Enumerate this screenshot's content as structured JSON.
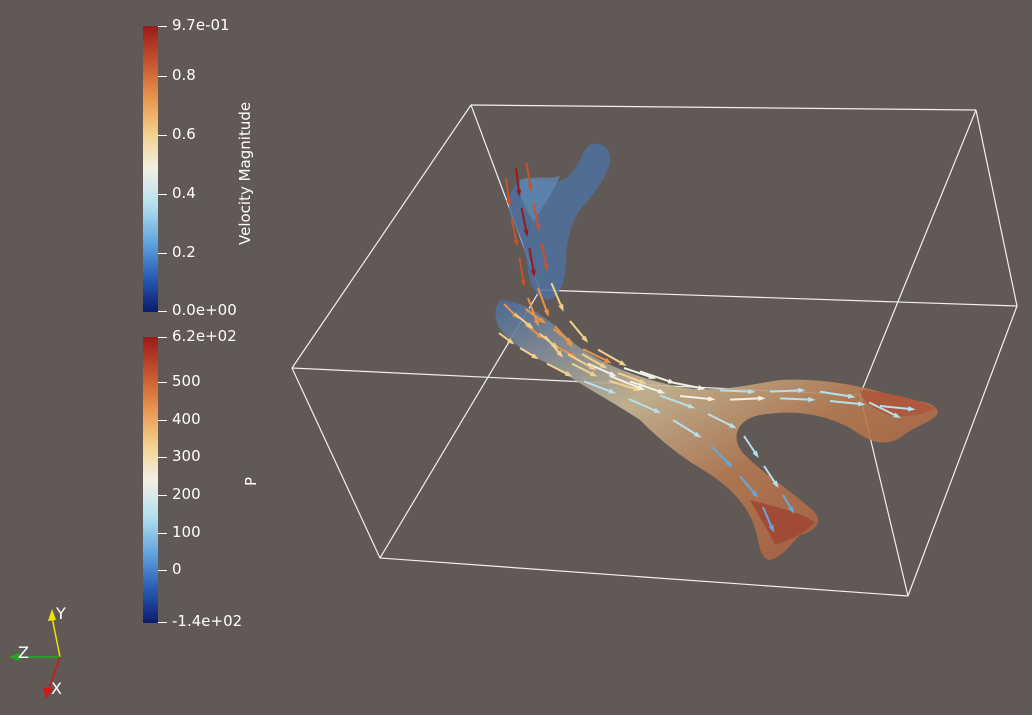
{
  "colors": {
    "background": "#605955",
    "colormap": [
      "#0c1b6e",
      "#2a5fb5",
      "#64a8e0",
      "#b5e0ee",
      "#f2f0e4",
      "#f3d08c",
      "#e8944c",
      "#c5532f",
      "#9a1a1a"
    ]
  },
  "velocity_bar": {
    "title": "Velocity Magnitude",
    "range": [
      0.0,
      0.97
    ],
    "max_label": "9.7e-01",
    "min_label": "0.0e+00",
    "ticks": [
      {
        "value": 0.8,
        "label": "0.8"
      },
      {
        "value": 0.6,
        "label": "0.6"
      },
      {
        "value": 0.4,
        "label": "0.4"
      },
      {
        "value": 0.2,
        "label": "0.2"
      }
    ]
  },
  "pressure_bar": {
    "title": "P",
    "range": [
      -140,
      620
    ],
    "max_label": "6.2e+02",
    "min_label": "-1.4e+02",
    "ticks": [
      {
        "value": 500,
        "label": "500"
      },
      {
        "value": 400,
        "label": "400"
      },
      {
        "value": 300,
        "label": "300"
      },
      {
        "value": 200,
        "label": "200"
      },
      {
        "value": 100,
        "label": "100"
      },
      {
        "value": 0,
        "label": "0"
      }
    ]
  },
  "orientation_axes": {
    "y": {
      "label": "Y",
      "color": "#e8e800"
    },
    "z": {
      "label": "Z",
      "color": "#22aa22"
    },
    "x": {
      "label": "X",
      "color": "#d01818"
    }
  }
}
